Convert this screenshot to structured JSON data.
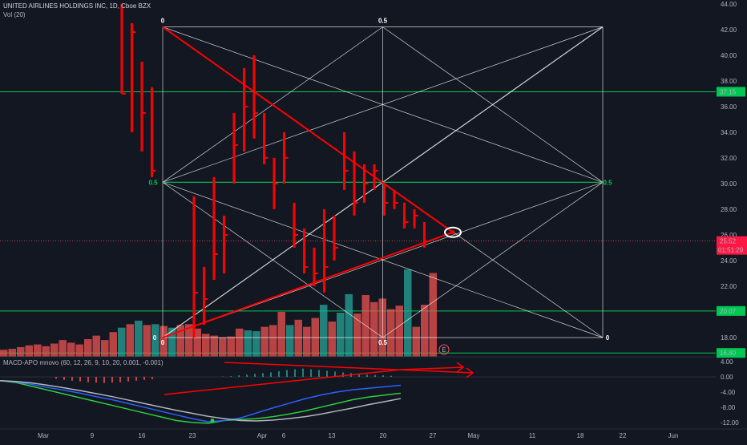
{
  "header": {
    "symbol_line": "UNITED AIRLINES HOLDINGS INC, 1D, Cboe BZX",
    "vol_label": "Vol (20)",
    "macd_label": "MACD-APO mnovo (60, 12, 26, 9, 10, 20, 0.001, -0.001)"
  },
  "colors": {
    "background": "#131722",
    "bar": "#ff0000",
    "vol_up": "#26a69a",
    "vol_down": "#ef5350",
    "level_line": "#00c853",
    "price_line": "#ff5252",
    "grid_box": "#ffffff"
  },
  "badges": {
    "price": "25.52",
    "countdown": "01:51:29",
    "earnings": "E"
  },
  "chart_data": {
    "type": "bar",
    "price_axis": {
      "range": [
        16.5,
        44.3
      ],
      "ticks": [
        "44.00",
        "42.00",
        "40.00",
        "38.00",
        "36.00",
        "34.00",
        "32.00",
        "30.00",
        "28.00",
        "26.00",
        "24.00",
        "22.00",
        "20.00",
        "18.00"
      ]
    },
    "macd_axis": {
      "range": [
        -13.5,
        5.5
      ],
      "ticks": [
        "4.00",
        "0.00",
        "-4.00",
        "-8.00",
        "-12.00"
      ]
    },
    "x_axis": {
      "labels": [
        "Mar",
        "9",
        "16",
        "23",
        "Apr",
        "6",
        "13",
        "20",
        "27",
        "May",
        "11",
        "18",
        "22",
        "Jun"
      ]
    },
    "price_bars": [
      {
        "h": 44.0,
        "l": 37.0,
        "c": 37.0
      },
      {
        "h": 42.5,
        "l": 34.0,
        "c": 41.8
      },
      {
        "h": 39.5,
        "l": 32.5,
        "c": 35.5
      },
      {
        "h": 37.5,
        "l": 30.5,
        "c": 31.0
      },
      {
        "h": 29.0,
        "l": 18.0,
        "c": 21.5
      },
      {
        "h": 23.5,
        "l": 19.0,
        "c": 21.0
      },
      {
        "h": 30.5,
        "l": 22.5,
        "c": 24.5
      },
      {
        "h": 27.5,
        "l": 23.0,
        "c": 26.0
      },
      {
        "h": 35.5,
        "l": 30.0,
        "c": 33.0
      },
      {
        "h": 39.0,
        "l": 32.5,
        "c": 36.0
      },
      {
        "h": 40.0,
        "l": 33.5,
        "c": 35.5
      },
      {
        "h": 35.5,
        "l": 31.5,
        "c": 32.0
      },
      {
        "h": 32.0,
        "l": 28.0,
        "c": 30.0
      },
      {
        "h": 34.0,
        "l": 30.0,
        "c": 32.0
      },
      {
        "h": 28.5,
        "l": 25.0,
        "c": 26.0
      },
      {
        "h": 26.5,
        "l": 23.0,
        "c": 23.5
      },
      {
        "h": 25.0,
        "l": 22.0,
        "c": 23.0
      },
      {
        "h": 28.0,
        "l": 21.5,
        "c": 23.5
      },
      {
        "h": 27.5,
        "l": 24.0,
        "c": 25.0
      },
      {
        "h": 34.0,
        "l": 29.5,
        "c": 31.0
      },
      {
        "h": 32.5,
        "l": 27.5,
        "c": 28.5
      },
      {
        "h": 31.5,
        "l": 28.5,
        "c": 30.0
      },
      {
        "h": 31.5,
        "l": 29.5,
        "c": 31.0
      },
      {
        "h": 30.0,
        "l": 27.5,
        "c": 28.5
      },
      {
        "h": 29.5,
        "l": 28.0,
        "c": 28.5
      },
      {
        "h": 28.5,
        "l": 26.5,
        "c": 27.0
      },
      {
        "h": 28.0,
        "l": 26.5,
        "c": 27.5
      },
      {
        "h": 27.0,
        "l": 25.0,
        "c": 25.5
      }
    ],
    "volume": [
      {
        "v": 16,
        "up": false
      },
      {
        "v": 18,
        "up": false
      },
      {
        "v": 22,
        "up": false
      },
      {
        "v": 26,
        "up": false
      },
      {
        "v": 28,
        "up": false
      },
      {
        "v": 24,
        "up": false
      },
      {
        "v": 30,
        "up": false
      },
      {
        "v": 38,
        "up": false
      },
      {
        "v": 32,
        "up": false
      },
      {
        "v": 28,
        "up": false
      },
      {
        "v": 40,
        "up": false
      },
      {
        "v": 48,
        "up": false
      },
      {
        "v": 38,
        "up": false
      },
      {
        "v": 56,
        "up": false
      },
      {
        "v": 66,
        "up": true
      },
      {
        "v": 74,
        "up": false
      },
      {
        "v": 82,
        "up": true
      },
      {
        "v": 72,
        "up": false
      },
      {
        "v": 74,
        "up": true
      },
      {
        "v": 70,
        "up": false
      },
      {
        "v": 66,
        "up": true
      },
      {
        "v": 72,
        "up": false
      },
      {
        "v": 74,
        "up": false
      },
      {
        "v": 64,
        "up": false
      },
      {
        "v": 52,
        "up": false
      },
      {
        "v": 48,
        "up": false
      },
      {
        "v": 44,
        "up": false
      },
      {
        "v": 46,
        "up": false
      },
      {
        "v": 64,
        "up": false
      },
      {
        "v": 60,
        "up": true
      },
      {
        "v": 58,
        "up": true
      },
      {
        "v": 68,
        "up": false
      },
      {
        "v": 72,
        "up": false
      },
      {
        "v": 102,
        "up": false
      },
      {
        "v": 72,
        "up": true
      },
      {
        "v": 84,
        "up": false
      },
      {
        "v": 68,
        "up": false
      },
      {
        "v": 88,
        "up": false
      },
      {
        "v": 118,
        "up": true
      },
      {
        "v": 80,
        "up": false
      },
      {
        "v": 100,
        "up": true
      },
      {
        "v": 142,
        "up": true
      },
      {
        "v": 98,
        "up": false
      },
      {
        "v": 140,
        "up": false
      },
      {
        "v": 124,
        "up": false
      },
      {
        "v": 132,
        "up": false
      },
      {
        "v": 108,
        "up": false
      },
      {
        "v": 116,
        "up": false
      },
      {
        "v": 198,
        "up": true
      },
      {
        "v": 68,
        "up": false
      },
      {
        "v": 118,
        "up": false
      },
      {
        "v": 190,
        "up": false
      }
    ],
    "levels": [
      {
        "price": 37.15,
        "label": "37.15"
      },
      {
        "price": 20.07,
        "label": "20.07"
      },
      {
        "price": 16.8,
        "label": "16.80"
      }
    ],
    "current_price": 25.52,
    "gann_box": {
      "top_price": 42.2,
      "bottom_price": 18.0,
      "labels": [
        "0",
        "0.5",
        "0",
        "0.5",
        "0.5",
        "0",
        "0.5",
        "0"
      ]
    },
    "macd": {
      "histogram": [
        0.1,
        0.2,
        0.4,
        0.6,
        0.8,
        1.0,
        1.2,
        1.5,
        1.8,
        2.0,
        2.2,
        2.0,
        1.8,
        1.6,
        1.4,
        1.2,
        1.0,
        0.8,
        0.6,
        0.5,
        0.4,
        0.3
      ],
      "neg_histogram": [
        -0.5,
        -0.8,
        -1.0,
        -1.2,
        -1.4,
        -1.5,
        -1.6,
        -1.5,
        -1.4,
        -1.2,
        -1.0,
        -0.8,
        -0.6
      ],
      "fast": [
        -1.0,
        -1.5,
        -2.5,
        -3.5,
        -4.5,
        -5.5,
        -6.5,
        -7.5,
        -8.5,
        -9.5,
        -10.5,
        -11.5,
        -12.0,
        -12.2,
        -11.5,
        -11.2,
        -11.0,
        -10.5,
        -9.8,
        -9.0,
        -8.0,
        -7.0,
        -6.0,
        -5.3,
        -4.8,
        -4.3
      ],
      "slow": [
        -1.0,
        -1.3,
        -2.0,
        -2.8,
        -3.5,
        -4.3,
        -5.2,
        -6.0,
        -7.0,
        -8.0,
        -9.0,
        -10.0,
        -11.0,
        -11.8,
        -11.5,
        -10.8,
        -9.5,
        -8.2,
        -7.0,
        -5.8,
        -4.8,
        -4.0,
        -3.4,
        -3.0,
        -2.6,
        -2.2
      ],
      "signal": [
        -1.0,
        -1.2,
        -1.6,
        -2.2,
        -2.9,
        -3.6,
        -4.4,
        -5.2,
        -6.1,
        -7.0,
        -7.9,
        -8.8,
        -9.6,
        -10.4,
        -11.0,
        -11.5,
        -11.6,
        -11.4,
        -11.0,
        -10.5,
        -9.8,
        -9.0,
        -8.2,
        -7.3,
        -6.5,
        -5.7
      ]
    }
  }
}
